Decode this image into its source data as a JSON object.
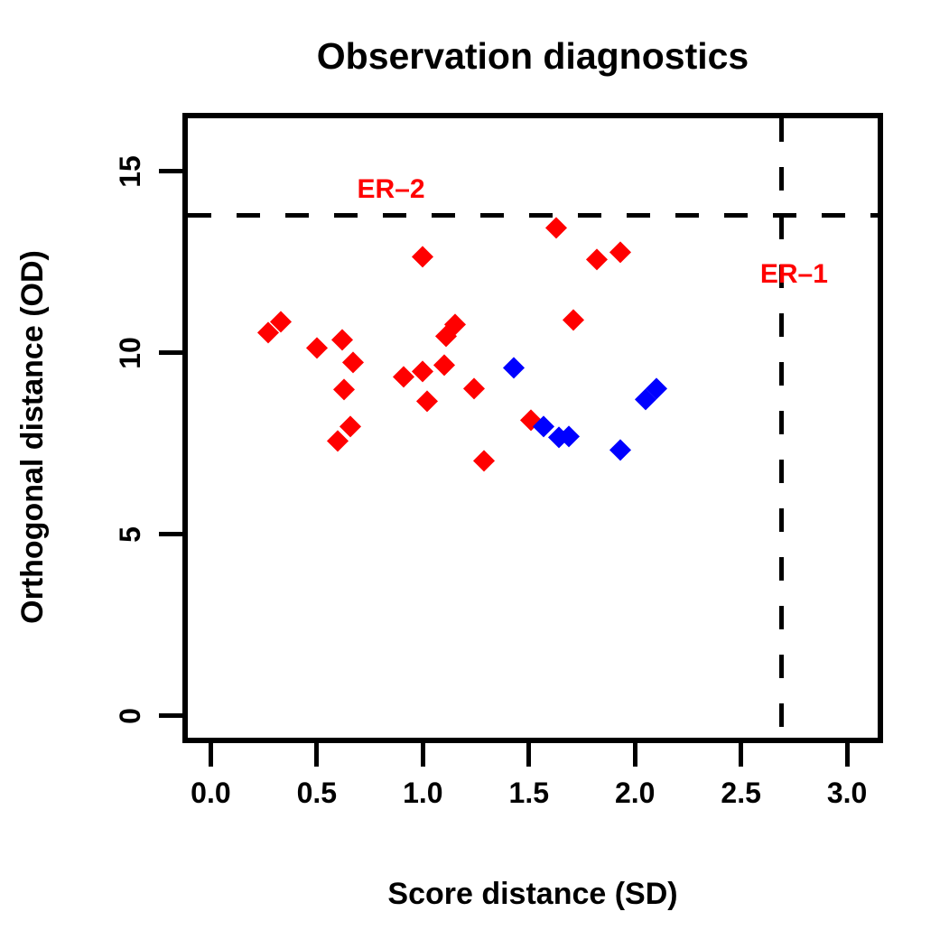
{
  "chart_data": {
    "type": "scatter",
    "title": "Observation diagnostics",
    "xlabel": "Score distance (SD)",
    "ylabel": "Orthogonal distance (OD)",
    "xlim": [
      -0.121,
      3.157
    ],
    "ylim": [
      -0.675,
      16.54
    ],
    "grid": false,
    "legend": false,
    "marker": "diamond",
    "x_ticks": [
      {
        "value": 0.0,
        "label": "0.0"
      },
      {
        "value": 0.5,
        "label": "0.5"
      },
      {
        "value": 1.0,
        "label": "1.0"
      },
      {
        "value": 1.5,
        "label": "1.5"
      },
      {
        "value": 2.0,
        "label": "2.0"
      },
      {
        "value": 2.5,
        "label": "2.5"
      },
      {
        "value": 3.0,
        "label": "3.0"
      }
    ],
    "y_ticks": [
      {
        "value": 0,
        "label": "0"
      },
      {
        "value": 5,
        "label": "5"
      },
      {
        "value": 10,
        "label": "10"
      },
      {
        "value": 15,
        "label": "15"
      }
    ],
    "series": [
      {
        "name": "red-observations",
        "color": "#FF0000",
        "marker": "diamond",
        "points": [
          [
            0.27,
            10.56
          ],
          [
            0.33,
            10.88
          ],
          [
            0.5,
            10.15
          ],
          [
            0.62,
            10.36
          ],
          [
            0.67,
            9.76
          ],
          [
            0.63,
            9.01
          ],
          [
            0.66,
            7.97
          ],
          [
            0.6,
            7.58
          ],
          [
            0.91,
            9.34
          ],
          [
            1.0,
            9.49
          ],
          [
            1.1,
            9.67
          ],
          [
            1.02,
            8.68
          ],
          [
            1.24,
            9.03
          ],
          [
            1.29,
            7.04
          ],
          [
            1.0,
            12.65
          ],
          [
            1.11,
            10.47
          ],
          [
            1.15,
            10.8
          ],
          [
            1.63,
            13.45
          ],
          [
            1.71,
            10.92
          ],
          [
            1.82,
            12.58
          ],
          [
            1.93,
            12.78
          ],
          [
            1.51,
            8.16
          ]
        ]
      },
      {
        "name": "blue-observations",
        "color": "#0000FF",
        "marker": "diamond",
        "points": [
          [
            1.43,
            9.61
          ],
          [
            1.57,
            7.99
          ],
          [
            1.64,
            7.68
          ],
          [
            1.69,
            7.72
          ],
          [
            1.93,
            7.33
          ],
          [
            2.05,
            8.73
          ],
          [
            2.1,
            9.03
          ]
        ]
      }
    ],
    "thresholds": [
      {
        "name": "er1",
        "orientation": "vertical",
        "value": 2.69,
        "label": "ER–1",
        "line_color": "#000000",
        "line_style": "dashed",
        "label_color": "#FF0000",
        "label_at": {
          "x": 2.75,
          "y": 12.15
        }
      },
      {
        "name": "er2",
        "orientation": "horizontal",
        "value": 13.78,
        "label": "ER–2",
        "line_color": "#000000",
        "line_style": "dashed",
        "label_color": "#FF0000",
        "label_at": {
          "x": 0.85,
          "y": 14.5
        }
      }
    ]
  }
}
